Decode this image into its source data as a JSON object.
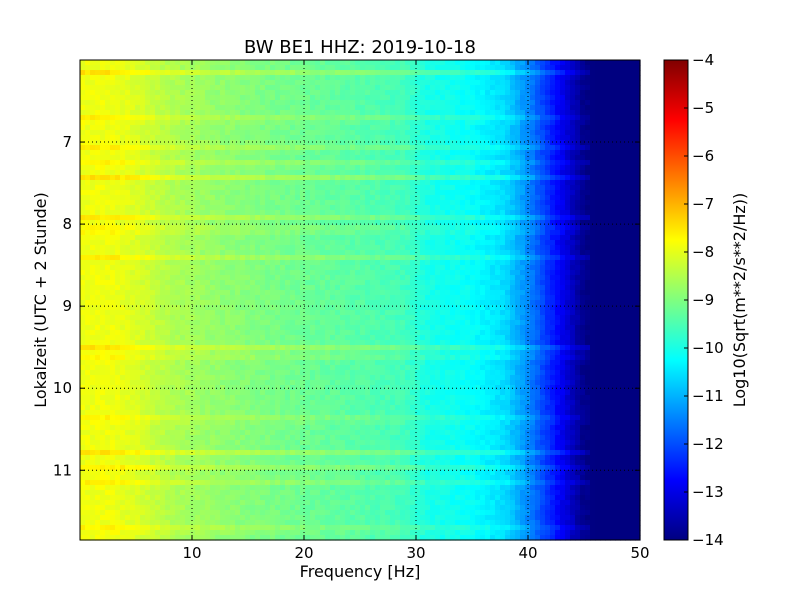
{
  "chart_data": {
    "type": "heatmap",
    "title": "BW BE1 HHZ: 2019-10-18",
    "xlabel": "Frequency [Hz]",
    "ylabel": "Lokalzeit (UTC + 2 Stunde)",
    "xlim": [
      0,
      50
    ],
    "ylim": [
      6.0,
      11.85
    ],
    "y_inverted": true,
    "x_ticks": [
      "10",
      "20",
      "30",
      "40",
      "50"
    ],
    "y_ticks": [
      "7",
      "8",
      "9",
      "10",
      "11"
    ],
    "grid": true,
    "colormap": "jet",
    "colorbar": {
      "label": "Log10(Sqrt(m**2/s**2/Hz))",
      "range": [
        -14,
        -4
      ],
      "ticks": [
        "-4",
        "-5",
        "-6",
        "-7",
        "-8",
        "-9",
        "-10",
        "-11",
        "-12",
        "-13",
        "-14"
      ]
    },
    "spectral_profile": {
      "frequency_hz": [
        0,
        1,
        3,
        5,
        8,
        12,
        18,
        25,
        29,
        31,
        35,
        38,
        40,
        42,
        44,
        45,
        46,
        48,
        50
      ],
      "log10_amplitude": [
        -7.9,
        -7.9,
        -7.9,
        -8.1,
        -8.5,
        -8.8,
        -9.1,
        -9.4,
        -9.6,
        -10.0,
        -10.2,
        -10.6,
        -11.4,
        -12.4,
        -13.4,
        -13.9,
        -14.0,
        -14.0,
        -14.0
      ]
    },
    "bright_bands_local_hour": [
      6.15,
      6.72,
      7.05,
      7.27,
      7.43,
      7.93,
      8.07,
      8.42,
      9.5,
      9.6,
      10.38,
      10.78,
      10.98,
      11.13,
      11.72
    ]
  }
}
